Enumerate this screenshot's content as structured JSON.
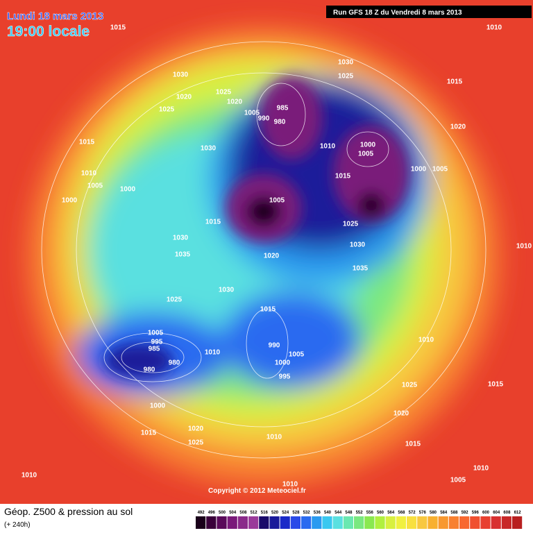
{
  "header": {
    "date": "Lundi 18 mars 2013",
    "time": "19:00 locale",
    "run": "Run GFS 18 Z du Vendredi 8 mars 2013"
  },
  "isobar_labels": [
    "1015",
    "1010",
    "1030",
    "1030",
    "1025",
    "1015",
    "1020",
    "1025",
    "1020",
    "1025",
    "985",
    "1005",
    "990",
    "980",
    "1020",
    "1015",
    "1030",
    "1010",
    "1000",
    "1005",
    "1010",
    "1000",
    "1005",
    "1015",
    "1005",
    "1000",
    "1000",
    "1005",
    "1015",
    "1025",
    "1030",
    "1030",
    "1010",
    "1035",
    "1020",
    "1035",
    "1030",
    "1025",
    "1015",
    "1005",
    "995",
    "990",
    "985",
    "980",
    "980",
    "1010",
    "1005",
    "1000",
    "1010",
    "995",
    "1025",
    "1015",
    "1000",
    "1020",
    "1020",
    "1015",
    "1025",
    "1010",
    "1015",
    "1010",
    "1010",
    "1005",
    "1010"
  ],
  "copyright": "Copyright © 2012 Meteociel.fr",
  "legend": {
    "title": "Géop. Z500 & pression au sol",
    "lead": "(+ 240h)",
    "levels": [
      492,
      496,
      500,
      504,
      508,
      512,
      516,
      520,
      524,
      528,
      532,
      536,
      540,
      544,
      548,
      552,
      556,
      560,
      564,
      568,
      572,
      576,
      580,
      584,
      588,
      592,
      596,
      600,
      604,
      608,
      612
    ],
    "colors": [
      "#1a001a",
      "#3a003a",
      "#5a0a5a",
      "#7a1a7a",
      "#8a2a8a",
      "#9a3a9a",
      "#1a0a6a",
      "#1a1a9a",
      "#1a2ac8",
      "#2a4ae8",
      "#2a6af0",
      "#2a9af0",
      "#3ac8f0",
      "#5ae0e0",
      "#6ae8b0",
      "#7ae880",
      "#8ae850",
      "#b0f040",
      "#d8f040",
      "#f0f040",
      "#f8e040",
      "#f8c840",
      "#f8b030",
      "#f89830",
      "#f88030",
      "#f86830",
      "#f05030",
      "#e84030",
      "#d83030",
      "#c82828",
      "#b82020"
    ]
  }
}
